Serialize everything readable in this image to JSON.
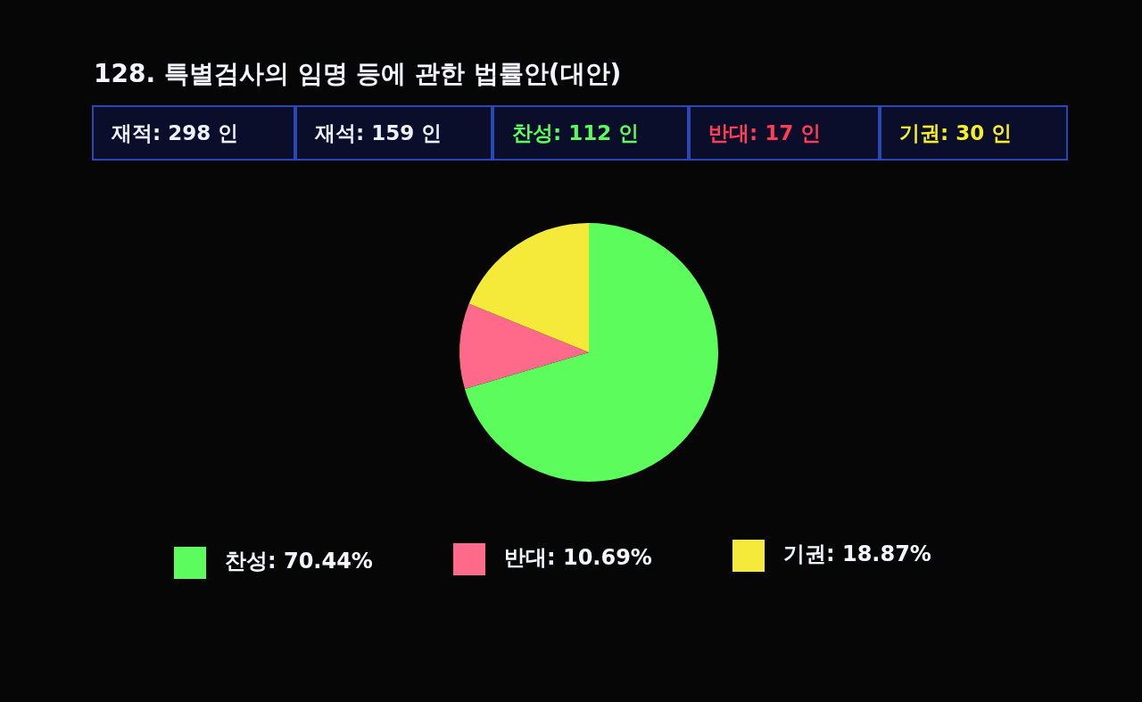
{
  "chart_data": {
    "type": "pie",
    "title": "128. 특별검사의 임명 등에 관한 법률안(대안)",
    "categories": [
      "찬성",
      "반대",
      "기권"
    ],
    "values": [
      70.44,
      10.69,
      18.87
    ],
    "colors": [
      "#5dfc5d",
      "#ff6a8a",
      "#f5e93a"
    ],
    "value_labels": [
      "70.44%",
      "10.69%",
      "18.87%"
    ],
    "legend": "bottom",
    "annotations": [
      "재적: 298 인",
      "재석: 159 인",
      "찬성: 112 인",
      "반대: 17 인",
      "기권: 30 인"
    ]
  }
}
